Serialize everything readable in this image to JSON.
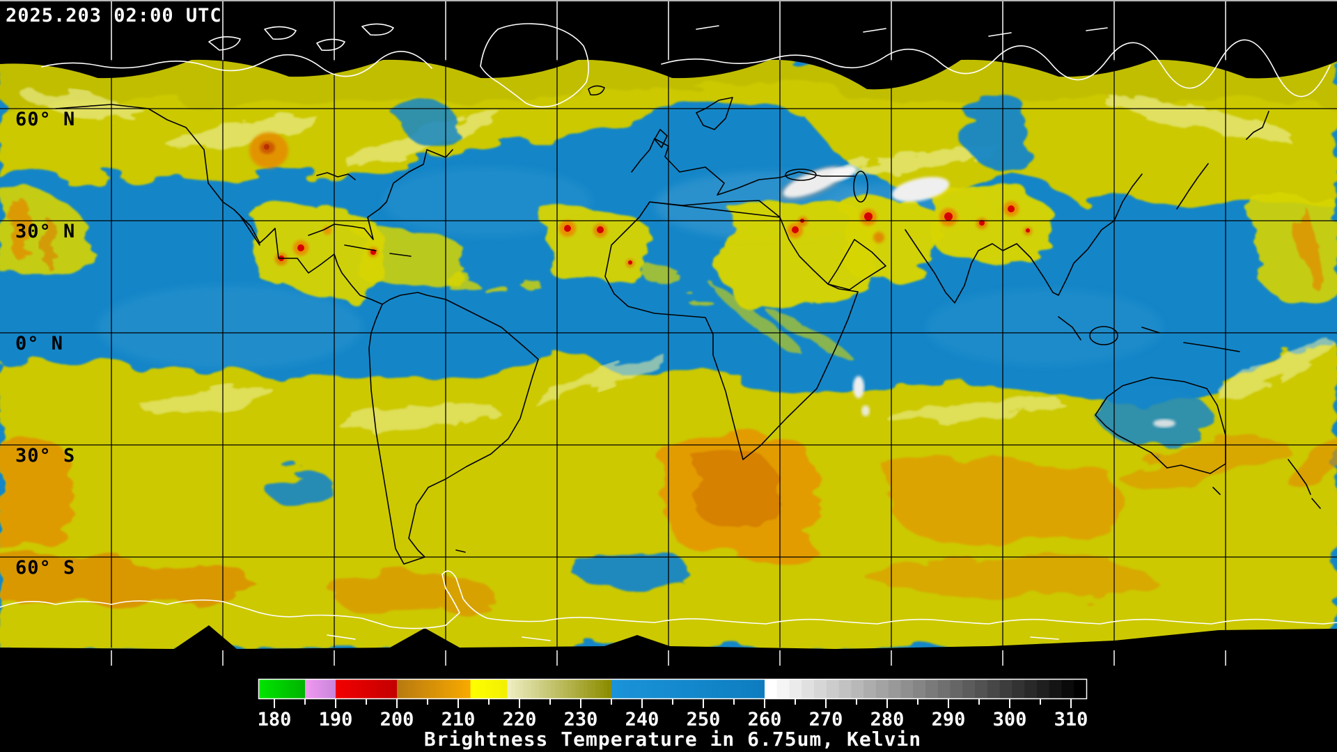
{
  "header": {
    "timestamp": "2025.203 02:00 UTC"
  },
  "map": {
    "latitude_labels": [
      "60° N",
      "30° N",
      "0° N",
      "30° S",
      "60° S"
    ],
    "grid": {
      "lat_step_deg": 30,
      "lon_step_deg": 30
    },
    "colors": {
      "background": "#000000",
      "moist_upper_troposphere_yellow": "#ccc900",
      "dry_mid_level_blue": "#1486c8",
      "very_dry_orange": "#e59400",
      "deep_convection_red": "#d40000",
      "warm_surface_white": "#efefef",
      "coastline_over_data": "#000000",
      "coastline_over_void": "#ffffff"
    }
  },
  "colorbar": {
    "title": "Brightness Temperature in 6.75um, Kelvin",
    "unit": "Kelvin",
    "range": {
      "min": 180,
      "max": 310
    },
    "tick_labels": [
      "180",
      "190",
      "200",
      "210",
      "220",
      "230",
      "240",
      "250",
      "260",
      "270",
      "280",
      "290",
      "300",
      "310"
    ],
    "tick_values": [
      180,
      190,
      200,
      210,
      220,
      230,
      240,
      250,
      260,
      270,
      280,
      290,
      300,
      310
    ],
    "minor_tick_step": 5,
    "segments": [
      {
        "name": "green",
        "from": 177.5,
        "to": 185,
        "color_start": "#00e400",
        "color_end": "#00b400"
      },
      {
        "name": "violet",
        "from": 185,
        "to": 190,
        "color_start": "#f098f0",
        "color_end": "#c986dc"
      },
      {
        "name": "red",
        "from": 190,
        "to": 200,
        "color_start": "#f20000",
        "color_end": "#c40000"
      },
      {
        "name": "orange",
        "from": 200,
        "to": 212,
        "color_start": "#b87a10",
        "color_end": "#f7a900"
      },
      {
        "name": "yellow",
        "from": 212,
        "to": 218,
        "color_start": "#ffff00",
        "color_end": "#f2f000"
      },
      {
        "name": "olive",
        "from": 218,
        "to": 235,
        "color_start": "#ededc0",
        "color_end": "#8c8c00"
      },
      {
        "name": "blue",
        "from": 235,
        "to": 260,
        "color_start": "#1b93d8",
        "color_end": "#0d7dc0"
      },
      {
        "name": "gray-ramp",
        "from": 260,
        "to": 312.5,
        "color_start": "#ffffff",
        "color_end": "#000000"
      }
    ]
  }
}
